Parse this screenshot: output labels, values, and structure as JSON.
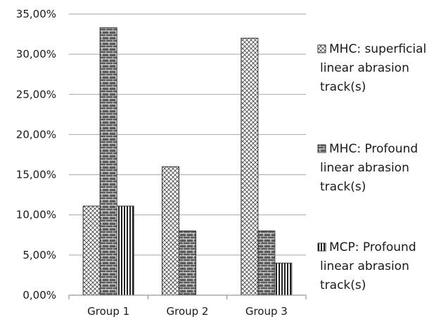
{
  "chart_data": {
    "type": "bar",
    "categories": [
      "Group 1",
      "Group 2",
      "Group 3"
    ],
    "series": [
      {
        "name": "MHC: superficial linear abrasion track(s)",
        "pattern": "crosshatch",
        "values": [
          11.1,
          16.0,
          32.0
        ]
      },
      {
        "name": "MHC: Profound linear abrasion track(s)",
        "pattern": "brick",
        "values": [
          33.3,
          8.0,
          8.0
        ]
      },
      {
        "name": "MCP: Profound linear abrasion track(s)",
        "pattern": "vertical-lines",
        "values": [
          11.1,
          0,
          4.0
        ]
      }
    ],
    "ylim": [
      0,
      35
    ],
    "y_ticks": [
      "0,00%",
      "5,00%",
      "10,00%",
      "15,00%",
      "20,00%",
      "25,00%",
      "30,00%",
      "35,00%"
    ],
    "grid": true,
    "legend_position": "right",
    "legend_lines": [
      [
        "MHC: superficial",
        "linear abrasion",
        "track(s)"
      ],
      [
        "MHC: Profound",
        "linear abrasion",
        "track(s)"
      ],
      [
        "MCP: Profound",
        "linear abrasion",
        "track(s)"
      ]
    ],
    "colors": {
      "grid": "#a6a6a6",
      "bar_stroke": "#333333",
      "text": "#1a1a1a"
    }
  }
}
